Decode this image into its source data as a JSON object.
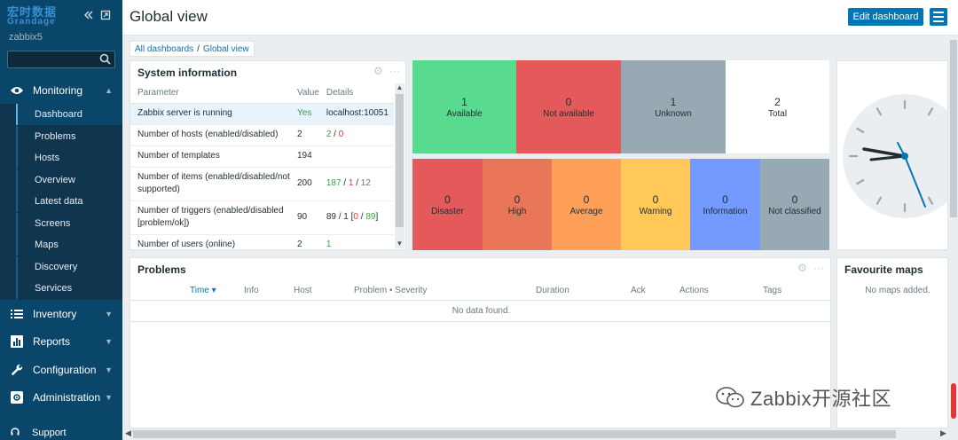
{
  "sidebar": {
    "logo_line1": "宏时数据",
    "logo_line2": "Grandage",
    "server_name": "zabbix5",
    "search_placeholder": "",
    "monitoring_label": "Monitoring",
    "monitoring_items": [
      {
        "label": "Dashboard",
        "active": true
      },
      {
        "label": "Problems"
      },
      {
        "label": "Hosts"
      },
      {
        "label": "Overview"
      },
      {
        "label": "Latest data"
      },
      {
        "label": "Screens"
      },
      {
        "label": "Maps"
      },
      {
        "label": "Discovery"
      },
      {
        "label": "Services"
      }
    ],
    "sections": [
      {
        "label": "Inventory",
        "icon": "list-icon"
      },
      {
        "label": "Reports",
        "icon": "chart-icon"
      },
      {
        "label": "Configuration",
        "icon": "wrench-icon"
      },
      {
        "label": "Administration",
        "icon": "gear-icon"
      }
    ],
    "support_label": "Support"
  },
  "header": {
    "title": "Global view",
    "edit_button": "Edit dashboard"
  },
  "breadcrumb": {
    "root": "All dashboards",
    "separator": "/",
    "current": "Global view"
  },
  "system_info": {
    "title": "System information",
    "columns": [
      "Parameter",
      "Value",
      "Details"
    ],
    "rows": [
      {
        "param": "Zabbix server is running",
        "value": "Yes",
        "details": "localhost:10051"
      },
      {
        "param": "Number of hosts (enabled/disabled)",
        "value": "2",
        "details_a": "2",
        "details_sep": " / ",
        "details_b": "0"
      },
      {
        "param": "Number of templates",
        "value": "194",
        "details": ""
      },
      {
        "param": "Number of items (enabled/disabled/not supported)",
        "value": "200",
        "details_a": "187",
        "details_b": "1",
        "details_c": "12"
      },
      {
        "param": "Number of triggers (enabled/disabled [problem/ok])",
        "value": "90",
        "details_a": "89 / 1 [",
        "details_b": "0",
        "details_c": "89",
        "details_d": "]"
      },
      {
        "param": "Number of users (online)",
        "value": "2",
        "details": "1"
      }
    ]
  },
  "host_availability": [
    {
      "count": "1",
      "label": "Available",
      "color": "#59db8f"
    },
    {
      "count": "0",
      "label": "Not available",
      "color": "#e45959"
    },
    {
      "count": "1",
      "label": "Unknown",
      "color": "#97aab3"
    },
    {
      "count": "2",
      "label": "Total",
      "color": "#ffffff"
    }
  ],
  "problems_by_severity": [
    {
      "count": "0",
      "label": "Disaster",
      "color": "#e45959"
    },
    {
      "count": "0",
      "label": "High",
      "color": "#e97659"
    },
    {
      "count": "0",
      "label": "Average",
      "color": "#ffa059"
    },
    {
      "count": "0",
      "label": "Warning",
      "color": "#ffc859"
    },
    {
      "count": "0",
      "label": "Information",
      "color": "#7499ff"
    },
    {
      "count": "0",
      "label": "Not classified",
      "color": "#97aab3"
    }
  ],
  "problems": {
    "title": "Problems",
    "columns": [
      "Time ▾",
      "Info",
      "Host",
      "Problem • Severity",
      "Duration",
      "Ack",
      "Actions",
      "Tags"
    ],
    "empty_message": "No data found."
  },
  "favourite_maps": {
    "title": "Favourite maps",
    "empty_message": "No maps added."
  },
  "watermark": "Zabbix开源社区"
}
